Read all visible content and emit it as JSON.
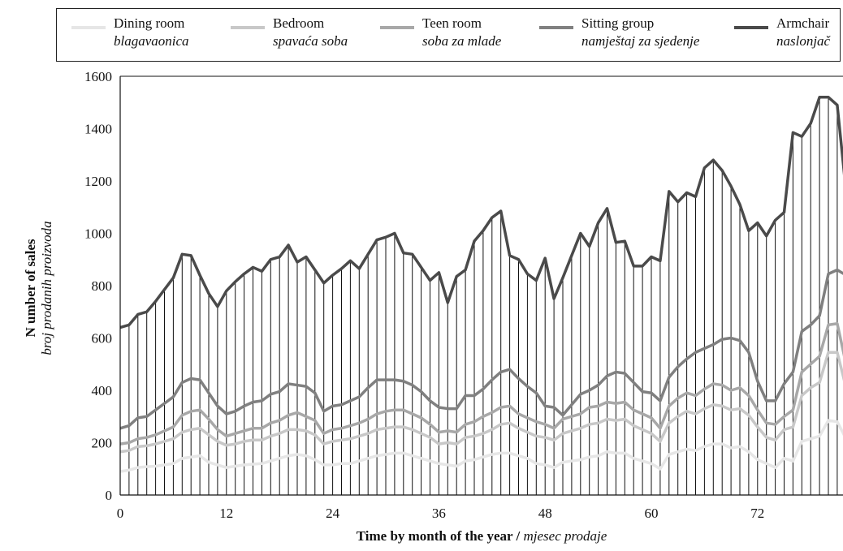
{
  "chart_data": {
    "type": "line",
    "ylabel": "N umber of sales",
    "ylabel_secondary": "broj prodanih proizvoda",
    "xlabel": "Time by month of the year",
    "xlabel_separator": " / ",
    "xlabel_secondary": "mjesec prodaje",
    "xlim": [
      0,
      82
    ],
    "ylim": [
      0,
      1600
    ],
    "x_ticks": [
      "0",
      "12",
      "24",
      "36",
      "48",
      "60",
      "72"
    ],
    "y_ticks": [
      "0",
      "200",
      "400",
      "600",
      "800",
      "1000",
      "1200",
      "1400",
      "1600"
    ],
    "grid": "vertical drop lines at every month",
    "legend_position": "top",
    "x": [
      0,
      1,
      2,
      3,
      4,
      5,
      6,
      7,
      8,
      9,
      10,
      11,
      12,
      13,
      14,
      15,
      16,
      17,
      18,
      19,
      20,
      21,
      22,
      23,
      24,
      25,
      26,
      27,
      28,
      29,
      30,
      31,
      32,
      33,
      34,
      35,
      36,
      37,
      38,
      39,
      40,
      41,
      42,
      43,
      44,
      45,
      46,
      47,
      48,
      49,
      50,
      51,
      52,
      53,
      54,
      55,
      56,
      57,
      58,
      59,
      60,
      61,
      62,
      63,
      64,
      65,
      66,
      67,
      68,
      69,
      70,
      71,
      72,
      73,
      74,
      75,
      76,
      77,
      78,
      79,
      80,
      81,
      82
    ],
    "series": [
      {
        "name": "Dining room",
        "name_secondary": "blagavaonica",
        "color": "#e6e6e6",
        "values": [
          90,
          95,
          105,
          108,
          110,
          115,
          120,
          140,
          145,
          150,
          125,
          115,
          105,
          110,
          115,
          118,
          120,
          130,
          140,
          150,
          155,
          150,
          135,
          115,
          115,
          120,
          120,
          130,
          140,
          150,
          155,
          160,
          160,
          150,
          140,
          130,
          120,
          115,
          110,
          130,
          135,
          145,
          155,
          160,
          160,
          150,
          140,
          120,
          115,
          105,
          125,
          130,
          135,
          145,
          150,
          165,
          160,
          160,
          140,
          130,
          120,
          100,
          155,
          165,
          175,
          170,
          185,
          195,
          195,
          180,
          185,
          165,
          135,
          120,
          105,
          140,
          130,
          205,
          215,
          225,
          285,
          280,
          215
        ]
      },
      {
        "name": "Bedroom",
        "name_secondary": "spavaća soba",
        "color": "#c8c8c8",
        "values": [
          165,
          170,
          185,
          188,
          195,
          205,
          215,
          240,
          250,
          255,
          230,
          205,
          190,
          195,
          205,
          210,
          210,
          225,
          235,
          250,
          250,
          245,
          230,
          195,
          205,
          210,
          215,
          225,
          235,
          250,
          255,
          260,
          260,
          250,
          235,
          220,
          195,
          200,
          195,
          220,
          225,
          235,
          250,
          270,
          275,
          255,
          240,
          225,
          220,
          210,
          235,
          245,
          255,
          270,
          275,
          290,
          285,
          290,
          265,
          250,
          235,
          205,
          275,
          300,
          320,
          310,
          330,
          345,
          340,
          325,
          330,
          305,
          260,
          220,
          210,
          250,
          260,
          380,
          410,
          430,
          545,
          545,
          410
        ]
      },
      {
        "name": "Teen room",
        "name_secondary": "soba za mlade",
        "color": "#a8a8a8",
        "values": [
          195,
          200,
          215,
          220,
          230,
          245,
          260,
          305,
          320,
          325,
          290,
          250,
          225,
          235,
          245,
          255,
          255,
          275,
          285,
          305,
          315,
          300,
          285,
          235,
          250,
          255,
          265,
          275,
          290,
          310,
          320,
          325,
          325,
          310,
          295,
          270,
          240,
          245,
          240,
          270,
          280,
          300,
          315,
          335,
          340,
          310,
          295,
          280,
          270,
          255,
          290,
          300,
          310,
          335,
          340,
          355,
          350,
          355,
          325,
          310,
          295,
          255,
          340,
          370,
          390,
          380,
          405,
          425,
          420,
          400,
          410,
          380,
          325,
          275,
          270,
          300,
          325,
          470,
          500,
          530,
          650,
          655,
          500
        ]
      },
      {
        "name": "Sitting group",
        "name_secondary": "namještaj za sjedenje",
        "color": "#808080",
        "values": [
          255,
          265,
          295,
          300,
          325,
          350,
          375,
          430,
          445,
          440,
          390,
          340,
          310,
          320,
          340,
          355,
          360,
          385,
          395,
          425,
          420,
          415,
          390,
          320,
          340,
          345,
          360,
          375,
          410,
          440,
          440,
          440,
          435,
          420,
          395,
          360,
          335,
          330,
          330,
          380,
          380,
          405,
          440,
          470,
          480,
          445,
          415,
          390,
          340,
          335,
          305,
          345,
          385,
          400,
          420,
          455,
          470,
          465,
          430,
          395,
          390,
          360,
          450,
          490,
          520,
          545,
          560,
          575,
          595,
          600,
          590,
          545,
          435,
          360,
          360,
          425,
          470,
          625,
          650,
          685,
          845,
          860,
          840
        ]
      },
      {
        "name": "Armchair",
        "name_secondary": "naslonjač",
        "color": "#4a4a4a",
        "values": [
          640,
          650,
          690,
          700,
          740,
          785,
          830,
          920,
          915,
          840,
          770,
          720,
          780,
          815,
          845,
          870,
          855,
          900,
          910,
          955,
          890,
          910,
          860,
          810,
          840,
          865,
          895,
          865,
          920,
          975,
          985,
          1000,
          925,
          920,
          870,
          820,
          850,
          735,
          835,
          860,
          970,
          1010,
          1060,
          1085,
          915,
          900,
          845,
          820,
          905,
          750,
          830,
          915,
          1000,
          950,
          1040,
          1095,
          965,
          970,
          875,
          875,
          910,
          895,
          1160,
          1120,
          1155,
          1140,
          1250,
          1280,
          1240,
          1180,
          1110,
          1010,
          1040,
          990,
          1050,
          1080,
          1385,
          1370,
          1420,
          1520,
          1520,
          1490,
          1160
        ]
      }
    ]
  }
}
